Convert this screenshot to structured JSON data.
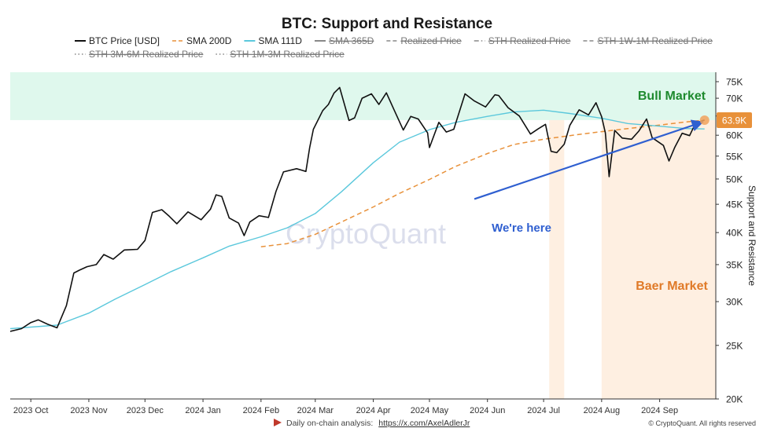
{
  "chart_data": {
    "type": "line",
    "title": "BTC: Support and Resistance",
    "ylabel": "Support and Resistance",
    "y_scale": "log",
    "ylim": [
      20000,
      78000
    ],
    "xlim": [
      "2023-09-20",
      "2024-10-01"
    ],
    "grid": false,
    "legend_position": "top",
    "x_ticks": [
      "2023 Oct",
      "2023 Nov",
      "2023 Dec",
      "2024 Jan",
      "2024 Feb",
      "2024 Mar",
      "2024 Apr",
      "2024 May",
      "2024 Jun",
      "2024 Jul",
      "2024 Aug",
      "2024 Sep"
    ],
    "x_tick_dates": [
      "2023-10-01",
      "2023-11-01",
      "2023-12-01",
      "2024-01-01",
      "2024-02-01",
      "2024-03-01",
      "2024-04-01",
      "2024-05-01",
      "2024-06-01",
      "2024-07-01",
      "2024-08-01",
      "2024-09-01"
    ],
    "y_ticks": [
      {
        "label": "75K",
        "value": 75000
      },
      {
        "label": "70K",
        "value": 70000
      },
      {
        "label": "65K",
        "value": 65000
      },
      {
        "label": "60K",
        "value": 60000
      },
      {
        "label": "55K",
        "value": 55000
      },
      {
        "label": "50K",
        "value": 50000
      },
      {
        "label": "45K",
        "value": 45000
      },
      {
        "label": "40K",
        "value": 40000
      },
      {
        "label": "35K",
        "value": 35000
      },
      {
        "label": "30K",
        "value": 30000
      },
      {
        "label": "25K",
        "value": 25000
      },
      {
        "label": "20K",
        "value": 20000
      }
    ],
    "legend": [
      {
        "label": "BTC Price [USD]",
        "style": "solid",
        "color": "#111111",
        "active": true
      },
      {
        "label": "SMA 200D",
        "style": "dashed",
        "color": "#e8913a",
        "active": true
      },
      {
        "label": "SMA 111D",
        "style": "solid",
        "color": "#5bc8dc",
        "active": true
      },
      {
        "label": "SMA 365D",
        "style": "solid",
        "color": "#999999",
        "active": false
      },
      {
        "label": "Realized Price",
        "style": "dashed",
        "color": "#999999",
        "active": false
      },
      {
        "label": "STH Realized Price",
        "style": "dashdot",
        "color": "#999999",
        "active": false
      },
      {
        "label": "STH 1W-1M Realized Price",
        "style": "dashed",
        "color": "#999999",
        "active": false
      },
      {
        "label": "STH 3M-6M Realized Price",
        "style": "dotted",
        "color": "#999999",
        "active": false
      },
      {
        "label": "STH 1M-3M Realized Price",
        "style": "dotted",
        "color": "#999999",
        "active": false
      }
    ],
    "series": [
      {
        "name": "BTC Price [USD]",
        "color": "#111111",
        "points": [
          [
            "2023-09-20",
            26500
          ],
          [
            "2023-09-26",
            26800
          ],
          [
            "2023-10-01",
            27500
          ],
          [
            "2023-10-05",
            27800
          ],
          [
            "2023-10-10",
            27300
          ],
          [
            "2023-10-15",
            26900
          ],
          [
            "2023-10-20",
            29500
          ],
          [
            "2023-10-24",
            33800
          ],
          [
            "2023-10-27",
            34200
          ],
          [
            "2023-10-31",
            34700
          ],
          [
            "2023-11-05",
            35000
          ],
          [
            "2023-11-09",
            36500
          ],
          [
            "2023-11-14",
            35800
          ],
          [
            "2023-11-20",
            37200
          ],
          [
            "2023-11-27",
            37300
          ],
          [
            "2023-12-01",
            38700
          ],
          [
            "2023-12-05",
            43500
          ],
          [
            "2023-12-10",
            44000
          ],
          [
            "2023-12-14",
            42800
          ],
          [
            "2023-12-18",
            41500
          ],
          [
            "2023-12-24",
            43600
          ],
          [
            "2023-12-31",
            42200
          ],
          [
            "2024-01-05",
            44100
          ],
          [
            "2024-01-08",
            46800
          ],
          [
            "2024-01-11",
            46500
          ],
          [
            "2024-01-15",
            42500
          ],
          [
            "2024-01-20",
            41600
          ],
          [
            "2024-01-23",
            39500
          ],
          [
            "2024-01-26",
            41800
          ],
          [
            "2024-01-31",
            42900
          ],
          [
            "2024-02-05",
            42600
          ],
          [
            "2024-02-09",
            47500
          ],
          [
            "2024-02-13",
            51500
          ],
          [
            "2024-02-20",
            52200
          ],
          [
            "2024-02-25",
            51600
          ],
          [
            "2024-02-27",
            57000
          ],
          [
            "2024-02-29",
            61500
          ],
          [
            "2024-03-05",
            66500
          ],
          [
            "2024-03-08",
            68200
          ],
          [
            "2024-03-11",
            71500
          ],
          [
            "2024-03-14",
            73200
          ],
          [
            "2024-03-19",
            63800
          ],
          [
            "2024-03-22",
            64500
          ],
          [
            "2024-03-26",
            70000
          ],
          [
            "2024-03-31",
            71300
          ],
          [
            "2024-04-04",
            68200
          ],
          [
            "2024-04-08",
            71600
          ],
          [
            "2024-04-12",
            66800
          ],
          [
            "2024-04-17",
            61300
          ],
          [
            "2024-04-21",
            64900
          ],
          [
            "2024-04-25",
            64200
          ],
          [
            "2024-04-30",
            60600
          ],
          [
            "2024-05-01",
            57000
          ],
          [
            "2024-05-06",
            63300
          ],
          [
            "2024-05-10",
            60800
          ],
          [
            "2024-05-14",
            61500
          ],
          [
            "2024-05-20",
            71300
          ],
          [
            "2024-05-25",
            69200
          ],
          [
            "2024-05-31",
            67500
          ],
          [
            "2024-06-05",
            71000
          ],
          [
            "2024-06-07",
            70800
          ],
          [
            "2024-06-12",
            67300
          ],
          [
            "2024-06-18",
            65000
          ],
          [
            "2024-06-24",
            60300
          ],
          [
            "2024-06-28",
            61600
          ],
          [
            "2024-07-02",
            62800
          ],
          [
            "2024-07-05",
            56100
          ],
          [
            "2024-07-08",
            55800
          ],
          [
            "2024-07-12",
            57800
          ],
          [
            "2024-07-15",
            62500
          ],
          [
            "2024-07-20",
            66700
          ],
          [
            "2024-07-25",
            65300
          ],
          [
            "2024-07-29",
            68700
          ],
          [
            "2024-08-01",
            64800
          ],
          [
            "2024-08-03",
            60600
          ],
          [
            "2024-08-05",
            50500
          ],
          [
            "2024-08-08",
            61200
          ],
          [
            "2024-08-12",
            59300
          ],
          [
            "2024-08-17",
            59000
          ],
          [
            "2024-08-21",
            61100
          ],
          [
            "2024-08-25",
            64200
          ],
          [
            "2024-08-28",
            59400
          ],
          [
            "2024-09-03",
            57500
          ],
          [
            "2024-09-06",
            53900
          ],
          [
            "2024-09-09",
            57000
          ],
          [
            "2024-09-13",
            60500
          ],
          [
            "2024-09-17",
            59900
          ],
          [
            "2024-09-20",
            62900
          ],
          [
            "2024-09-23",
            63600
          ],
          [
            "2024-09-25",
            63900
          ]
        ]
      },
      {
        "name": "SMA 111D",
        "color": "#5bc8dc",
        "points": [
          [
            "2023-09-20",
            26800
          ],
          [
            "2023-10-15",
            27200
          ],
          [
            "2023-11-01",
            28600
          ],
          [
            "2023-11-15",
            30300
          ],
          [
            "2023-12-01",
            32200
          ],
          [
            "2023-12-15",
            34000
          ],
          [
            "2024-01-01",
            36000
          ],
          [
            "2024-01-15",
            37800
          ],
          [
            "2024-02-01",
            39300
          ],
          [
            "2024-02-15",
            40800
          ],
          [
            "2024-03-01",
            43300
          ],
          [
            "2024-03-15",
            47400
          ],
          [
            "2024-04-01",
            53500
          ],
          [
            "2024-04-15",
            58300
          ],
          [
            "2024-05-01",
            61400
          ],
          [
            "2024-05-15",
            63300
          ],
          [
            "2024-06-01",
            64900
          ],
          [
            "2024-06-15",
            66100
          ],
          [
            "2024-07-01",
            66600
          ],
          [
            "2024-07-15",
            65700
          ],
          [
            "2024-08-01",
            64400
          ],
          [
            "2024-08-15",
            63000
          ],
          [
            "2024-09-01",
            62300
          ],
          [
            "2024-09-15",
            61700
          ],
          [
            "2024-09-25",
            61600
          ]
        ]
      },
      {
        "name": "SMA 200D",
        "color": "#e8913a",
        "points": [
          [
            "2024-02-01",
            37700
          ],
          [
            "2024-02-15",
            38200
          ],
          [
            "2024-03-01",
            39700
          ],
          [
            "2024-03-15",
            41800
          ],
          [
            "2024-04-01",
            44500
          ],
          [
            "2024-04-15",
            47100
          ],
          [
            "2024-05-01",
            49900
          ],
          [
            "2024-05-15",
            52700
          ],
          [
            "2024-06-01",
            55600
          ],
          [
            "2024-06-15",
            57700
          ],
          [
            "2024-07-01",
            59000
          ],
          [
            "2024-07-15",
            59900
          ],
          [
            "2024-08-01",
            60900
          ],
          [
            "2024-08-15",
            61700
          ],
          [
            "2024-09-01",
            62600
          ],
          [
            "2024-09-15",
            63400
          ],
          [
            "2024-09-25",
            63900
          ]
        ]
      }
    ],
    "bull_zone": {
      "label": "Bull Market",
      "from": 63900,
      "to": 78000
    },
    "bear_zone": {
      "label": "Baer Market"
    },
    "bear_bands": [
      [
        "2024-07-04",
        "2024-07-12"
      ],
      [
        "2024-08-01",
        "2024-10-01"
      ]
    ],
    "arrow": {
      "label": "We're here",
      "from": [
        "2024-05-25",
        46000
      ],
      "to": [
        "2024-09-24",
        63400
      ]
    },
    "current_value": {
      "label": "63.9K",
      "value": 63900,
      "date": "2024-09-25"
    },
    "watermark": "CryptoQuant"
  },
  "footer": {
    "source_prefix": "Daily on-chain analysis:",
    "source_link": "https://x.com/AxelAdlerJr",
    "copyright": "© CryptoQuant. All rights reserved"
  }
}
